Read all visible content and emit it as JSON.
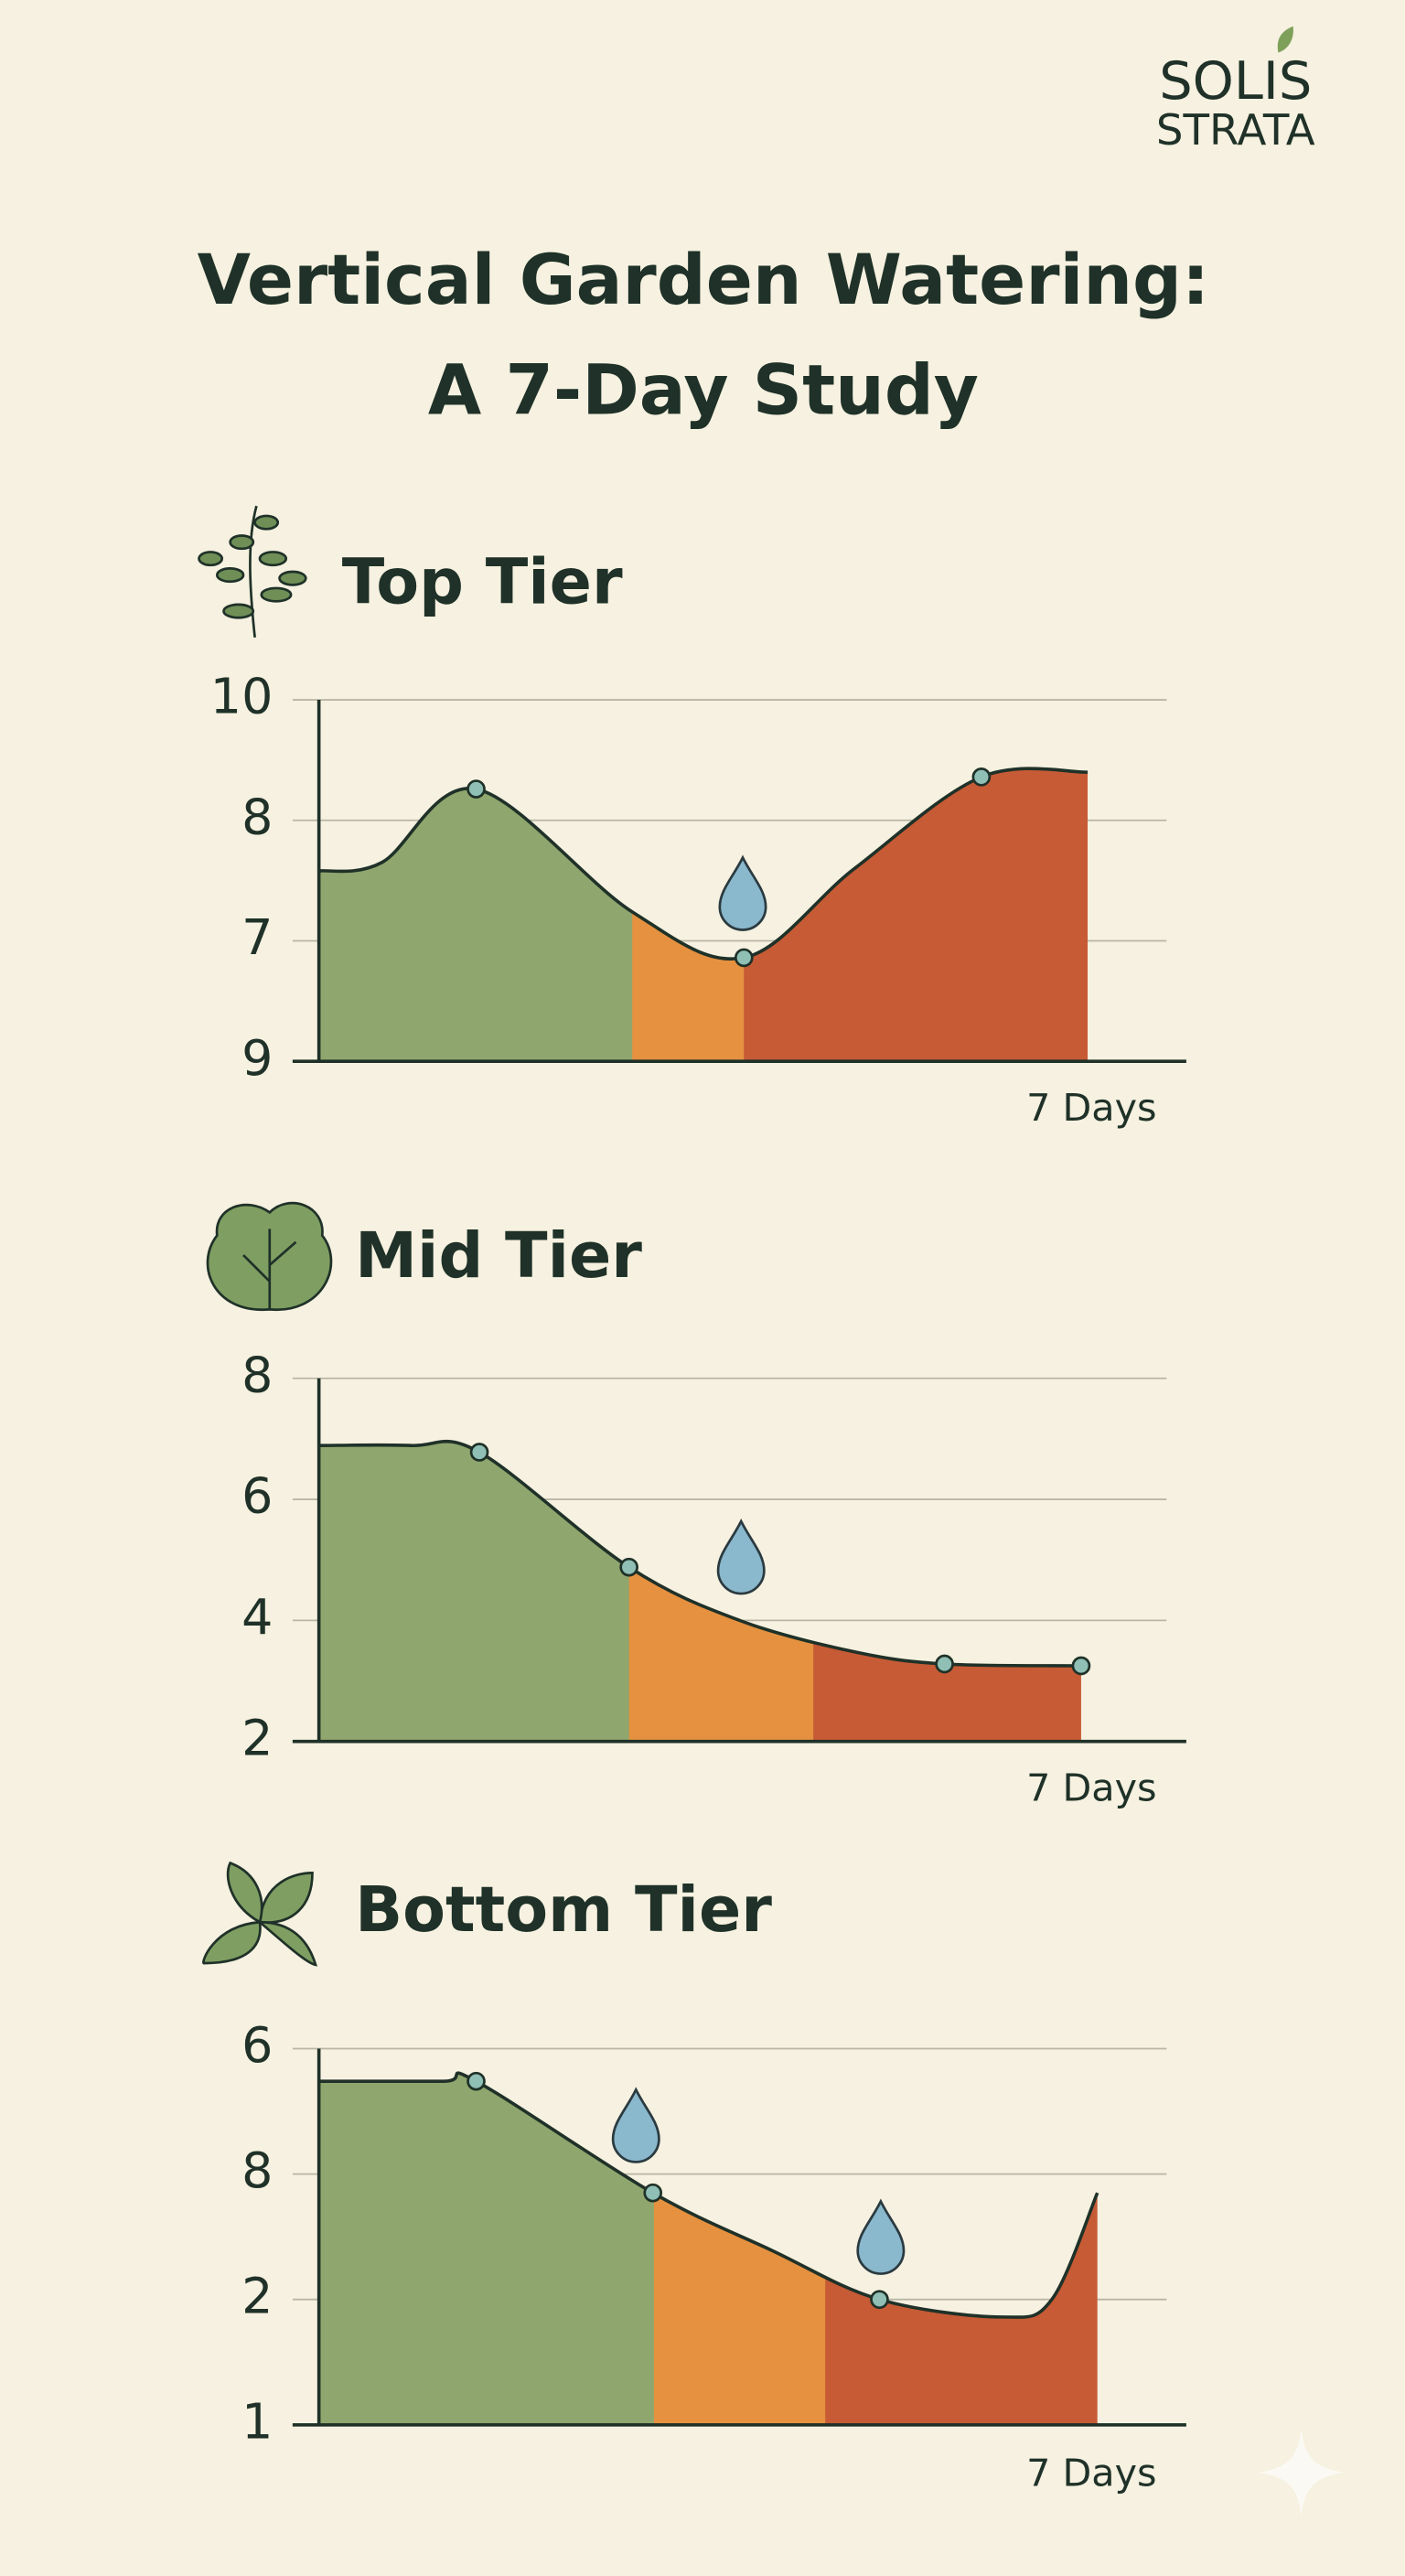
{
  "logo": [
    "SOLIS",
    "STRATA"
  ],
  "title": [
    "Vertical Garden Watering:",
    "A 7-Day Study"
  ],
  "chart_data": [
    {
      "type": "area",
      "title": "Top Tier",
      "xlabel": "7 Days",
      "xlim": [
        0,
        8
      ],
      "ylim": [
        0,
        3
      ],
      "yticks": [
        {
          "value": 3,
          "label": "10"
        },
        {
          "value": 2,
          "label": "8"
        },
        {
          "value": 1,
          "label": "7"
        },
        {
          "value": 0,
          "label": "9"
        }
      ],
      "grid": true,
      "x": [
        0,
        0.58,
        1.45,
        2.89,
        3.92,
        4.94,
        6.11,
        7.09
      ],
      "values": [
        1.58,
        1.65,
        2.26,
        1.24,
        0.86,
        1.6,
        2.36,
        2.4
      ],
      "dots": {
        "x": [
          1.45,
          3.92,
          6.11
        ],
        "values": [
          2.26,
          0.86,
          2.36
        ]
      },
      "bands": [
        {
          "color": "#8fa66e",
          "to": 2.89
        },
        {
          "color": "#e59140",
          "to": 3.92
        },
        {
          "color": "#c65b35",
          "to": 7.09
        }
      ]
    },
    {
      "type": "area",
      "title": "Mid Tier",
      "xlabel": "7 Days",
      "xlim": [
        0,
        8
      ],
      "ylim": [
        2,
        8
      ],
      "yticks": [
        8,
        6,
        4,
        2
      ],
      "grid": true,
      "x": [
        0,
        0.85,
        1.48,
        2.86,
        3.88,
        4.94,
        5.77,
        7.03
      ],
      "values": [
        6.89,
        6.89,
        6.78,
        4.88,
        4.0,
        3.48,
        3.28,
        3.25
      ],
      "dots": {
        "x": [
          1.48,
          2.86,
          5.77,
          7.03
        ],
        "values": [
          6.78,
          4.88,
          3.28,
          3.25
        ]
      },
      "bands": [
        {
          "color": "#8fa66e",
          "to": 2.86
        },
        {
          "color": "#e59140",
          "to": 4.56
        },
        {
          "color": "#c65b35",
          "to": 7.03
        }
      ]
    },
    {
      "type": "area",
      "title": "Bottom Tier",
      "xlabel": "7 Days",
      "xlim": [
        0,
        8
      ],
      "ylim": [
        0,
        3
      ],
      "yticks": [
        {
          "value": 3,
          "label": "6"
        },
        {
          "value": 2,
          "label": "8"
        },
        {
          "value": 1,
          "label": "2"
        },
        {
          "value": 0,
          "label": "1"
        }
      ],
      "grid": true,
      "x": [
        0,
        1.15,
        1.45,
        3.08,
        4.18,
        5.17,
        6.3,
        6.76,
        7.18
      ],
      "values": [
        2.74,
        2.74,
        2.74,
        1.85,
        1.39,
        1.0,
        0.86,
        1.0,
        1.85
      ],
      "dots": {
        "x": [
          1.45,
          3.08,
          5.17
        ],
        "values": [
          2.74,
          1.85,
          1.0
        ]
      },
      "bands": [
        {
          "color": "#8fa66e",
          "to": 3.09
        },
        {
          "color": "#e59140",
          "to": 4.67
        },
        {
          "color": "#c65b35",
          "to": 7.18
        }
      ]
    }
  ]
}
